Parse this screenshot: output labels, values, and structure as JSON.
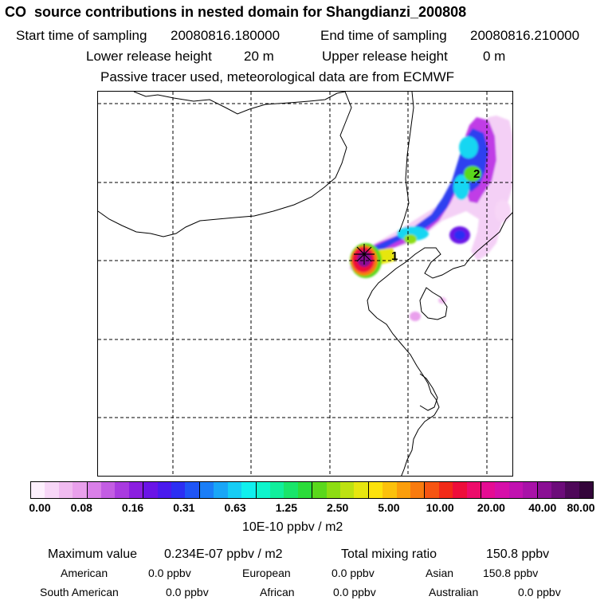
{
  "header": {
    "title": "CO  source contributions in nested domain for Shangdianzi_200808",
    "start_label": "Start time of sampling",
    "start_value": "20080816.180000",
    "end_label": "End time of sampling",
    "end_value": "20080816.210000",
    "lower_label": "Lower release height",
    "lower_value": "20 m",
    "upper_label": "Upper release height",
    "upper_value": "0 m",
    "note": "Passive tracer used, meteorological data are from ECMWF"
  },
  "map": {
    "markers": [
      {
        "label": "1"
      },
      {
        "label": "2"
      }
    ],
    "receptor_icon": "star-cross-icon"
  },
  "colorbar": {
    "colors": [
      "#fdf0fd",
      "#f7d6f7",
      "#f0bbf0",
      "#e9a0ec",
      "#d97fe8",
      "#c35de3",
      "#a93be0",
      "#8b1fe0",
      "#6a14e6",
      "#4a1aee",
      "#2c2ff3",
      "#1f55f6",
      "#1b7ef7",
      "#19a6f7",
      "#16cdf5",
      "#10f0ee",
      "#0ef5cc",
      "#11ef9c",
      "#19e56a",
      "#2bdc3a",
      "#5ad81c",
      "#8ddd13",
      "#bde212",
      "#e7e610",
      "#fde20c",
      "#fcc10b",
      "#fb9e0b",
      "#f97b0e",
      "#f65512",
      "#f22a18",
      "#ee0d3a",
      "#ed0b6a",
      "#e50c93",
      "#d60fa9",
      "#c112b0",
      "#a812a8",
      "#8a0f94",
      "#6c0c7a",
      "#4e0859",
      "#33053a"
    ],
    "ticks": [
      "0.00",
      "0.08",
      "0.16",
      "0.31",
      "0.63",
      "1.25",
      "2.50",
      "5.00",
      "10.00",
      "20.00",
      "40.00",
      "80.00"
    ],
    "unit": "10E-10 ppbv / m2"
  },
  "summary": {
    "max_label": "Maximum value",
    "max_value": "0.234E-07 ppbv / m2",
    "total_label": "Total mixing ratio",
    "total_value": "150.8 ppbv",
    "regions": [
      {
        "name": "American",
        "value": "0.0 ppbv"
      },
      {
        "name": "European",
        "value": "0.0 ppbv"
      },
      {
        "name": "Asian",
        "value": "150.8 ppbv"
      },
      {
        "name": "South American",
        "value": "0.0 ppbv"
      },
      {
        "name": "African",
        "value": "0.0 ppbv"
      },
      {
        "name": "Australian",
        "value": "0.0 ppbv"
      }
    ]
  }
}
